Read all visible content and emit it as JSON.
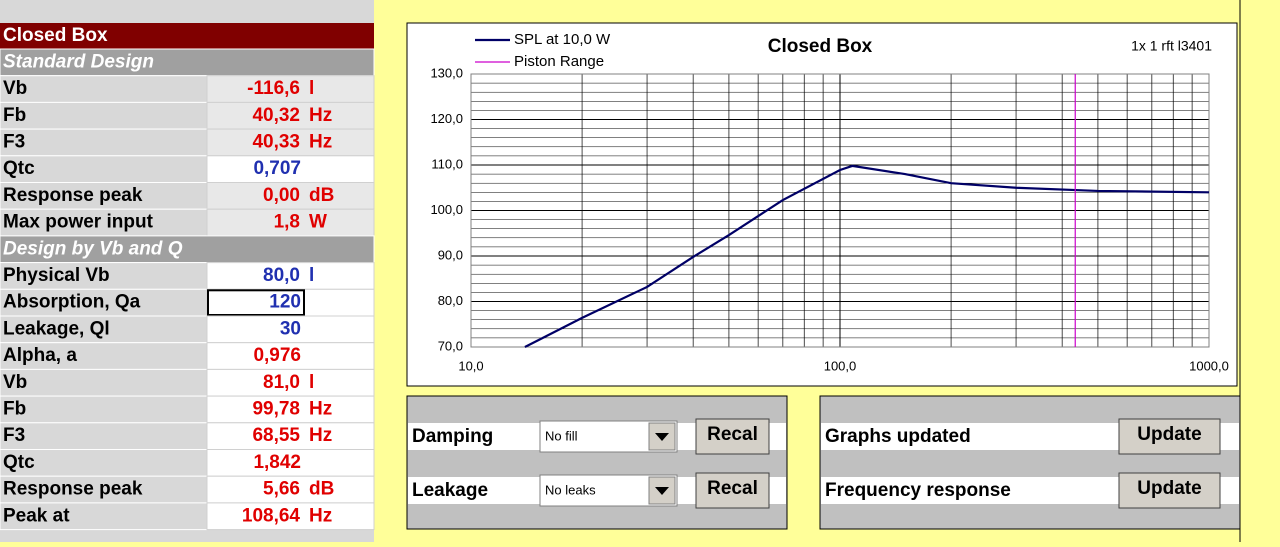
{
  "sheet": {
    "title": "Closed Box",
    "rows": [
      {
        "section": "Standard Design"
      },
      {
        "label": "Vb",
        "value": "-116,6",
        "unit": "l",
        "color": "#e00000"
      },
      {
        "label": "Fb",
        "value": "40,32",
        "unit": "Hz",
        "color": "#e00000"
      },
      {
        "label": "F3",
        "value": "40,33",
        "unit": "Hz",
        "color": "#e00000"
      },
      {
        "label": "Qtc",
        "value": "0,707",
        "color": "#2030b0"
      },
      {
        "label": "Response peak",
        "value": "0,00",
        "unit": "dB",
        "color": "#e00000"
      },
      {
        "label": "Max power input",
        "value": "1,8",
        "unit": "W",
        "color": "#e00000"
      },
      {
        "section": "Design by Vb and Q"
      },
      {
        "label": "Physical Vb",
        "value": "80,0",
        "unit": "l",
        "color": "#2030b0"
      },
      {
        "label": "Absorption, Qa",
        "value": "120",
        "color": "#2030b0"
      },
      {
        "label": "Leakage, Ql",
        "value": "30",
        "color": "#2030b0"
      },
      {
        "label": "Alpha, a",
        "value": "0,976",
        "color": "#e00000"
      },
      {
        "label": "Vb",
        "value": "81,0",
        "unit": "l",
        "color": "#e00000"
      },
      {
        "label": "Fb",
        "value": "99,78",
        "unit": "Hz",
        "color": "#e00000"
      },
      {
        "label": "F3",
        "value": "68,55",
        "unit": "Hz",
        "color": "#e00000"
      },
      {
        "label": "Qtc",
        "value": "1,842",
        "color": "#e00000"
      },
      {
        "label": "Response peak",
        "value": "5,66",
        "unit": "dB",
        "color": "#e00000"
      },
      {
        "label": "Peak at",
        "value": "108,64",
        "unit": "Hz",
        "color": "#e00000"
      }
    ]
  },
  "controls": [
    {
      "label": "Damping",
      "select": "No fill",
      "button": "Recal"
    },
    {
      "label": "Leakage",
      "select": "No leaks",
      "button": "Recal"
    }
  ],
  "status": [
    {
      "label": "Graphs updated",
      "button": "Update"
    },
    {
      "label": "Frequency response",
      "button": "Update"
    }
  ],
  "chart_data": {
    "type": "line",
    "title": "Closed Box",
    "annotation": "1x  1  rft  l3401",
    "xlog": true,
    "grid": true,
    "legend": "top-left",
    "xlim": [
      10,
      1000
    ],
    "xticks": [
      {
        "value": 10,
        "label": "10,0"
      },
      {
        "value": 100,
        "label": "100,0"
      },
      {
        "value": 1000,
        "label": "1000,0"
      }
    ],
    "ylim": [
      70,
      130
    ],
    "yticks": [
      {
        "value": 70,
        "label": "70,0"
      },
      {
        "value": 80,
        "label": "80,0"
      },
      {
        "value": 90,
        "label": "90,0"
      },
      {
        "value": 100,
        "label": "100,0"
      },
      {
        "value": 110,
        "label": "110,0"
      },
      {
        "value": 120,
        "label": "120,0"
      },
      {
        "value": 130,
        "label": "130,0"
      }
    ],
    "series": [
      {
        "name": "SPL at 10,0 W",
        "color": "#000066",
        "x": [
          14,
          20,
          30,
          40,
          50,
          70,
          100,
          108,
          150,
          200,
          300,
          500,
          1000
        ],
        "values": [
          70,
          76.4,
          83.2,
          89.8,
          94.6,
          102.3,
          108.9,
          109.8,
          108,
          106,
          105,
          104.3,
          104
        ]
      },
      {
        "name": "Piston Range",
        "color": "#cc00cc",
        "x": [
          434,
          434
        ],
        "values": [
          70,
          130
        ]
      }
    ]
  }
}
